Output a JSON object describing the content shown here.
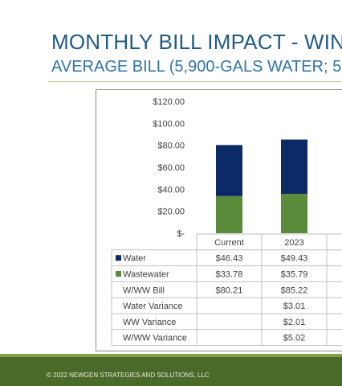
{
  "header": {
    "title": "MONTHLY BILL IMPACT - WINT",
    "subtitle": "AVERAGE BILL (5,900-GALS WATER; 5"
  },
  "footer": {
    "copyright": "© 2022 NEWGEN STRATEGIES AND SOLUTIONS, LLC"
  },
  "chart_data": {
    "type": "bar",
    "stacked": true,
    "categories": [
      "Current",
      "2023"
    ],
    "series": [
      {
        "name": "Water",
        "color": "#0b2a66",
        "values": [
          46.43,
          49.43
        ]
      },
      {
        "name": "Wastewater",
        "color": "#5a8a3a",
        "values": [
          33.78,
          35.79
        ]
      }
    ],
    "y_ticks": [
      "$120.00",
      "$100.00",
      "$80.00",
      "$60.00",
      "$40.00",
      "$20.00",
      "$-"
    ],
    "ylim": [
      0,
      120
    ],
    "legend": "data-table",
    "grid": false,
    "table_rows": [
      {
        "label": "Water",
        "marker": "#0b2a66",
        "values": [
          "$46.43",
          "$49.43"
        ]
      },
      {
        "label": "Wastewater",
        "marker": "#5a8a3a",
        "values": [
          "$33.78",
          "$35.79"
        ]
      },
      {
        "label": "W/WW Bill",
        "marker": null,
        "values": [
          "$80.21",
          "$85.22"
        ]
      },
      {
        "label": "Water Variance",
        "marker": null,
        "values": [
          "",
          "$3.01"
        ]
      },
      {
        "label": "WW Variance",
        "marker": null,
        "values": [
          "",
          "$2.01"
        ]
      },
      {
        "label": "W/WW Variance",
        "marker": null,
        "values": [
          "",
          "$5.02"
        ]
      }
    ]
  }
}
